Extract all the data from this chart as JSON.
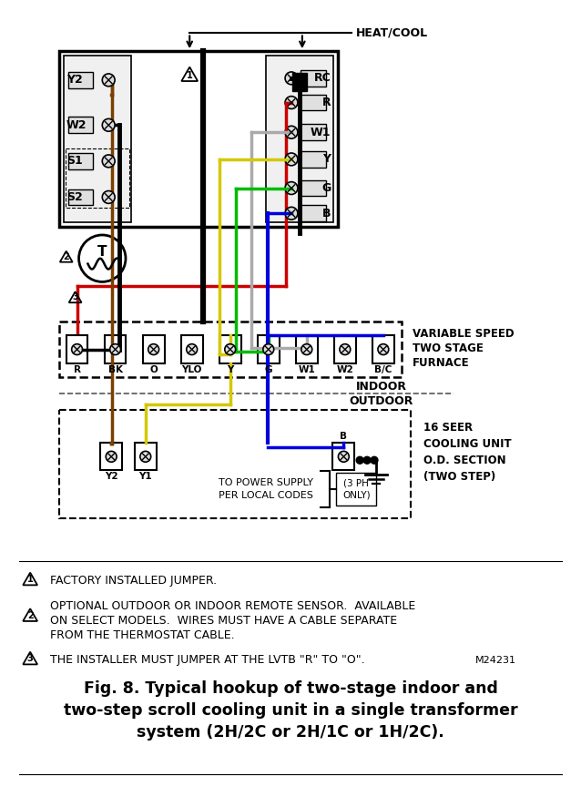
{
  "title_line1": "Fig. 8. Typical hookup of two-stage indoor and",
  "title_line2": "two-step scroll cooling unit in a single transformer",
  "title_line3": "system (2H/2C or 2H/1C or 1H/2C).",
  "heat_cool_label": "HEAT/COOL",
  "thermostat_labels_left": [
    "Y2",
    "W2",
    "S1",
    "S2"
  ],
  "thermostat_labels_right": [
    "RC",
    "R",
    "W1",
    "Y",
    "G",
    "B"
  ],
  "furnace_labels": [
    "R",
    "BK",
    "O",
    "YLO",
    "Y",
    "G",
    "W1",
    "W2",
    "B/C"
  ],
  "furnace_title_lines": [
    "VARIABLE SPEED",
    "TWO STAGE",
    "FURNACE"
  ],
  "cooling_unit_label_lines": [
    "16 SEER",
    "COOLING UNIT",
    "O.D. SECTION",
    "(TWO STEP)"
  ],
  "power_label": "TO POWER SUPPLY\nPER LOCAL CODES",
  "ph_label": "(3 PH\nONLY)",
  "note1": "FACTORY INSTALLED JUMPER.",
  "note2_line1": "OPTIONAL OUTDOOR OR INDOOR REMOTE SENSOR.  AVAILABLE",
  "note2_line2": "ON SELECT MODELS.  WIRES MUST HAVE A CABLE SEPARATE",
  "note2_line3": "FROM THE THERMOSTAT CABLE.",
  "note3": "THE INSTALLER MUST JUMPER AT THE LVTB \"R\" TO \"O\".",
  "model_num": "M24231",
  "bg_color": "#ffffff",
  "black": "#000000",
  "red": "#cc0000",
  "yellow": "#d4c800",
  "brown": "#7B3F00",
  "green": "#00bb00",
  "gray": "#aaaaaa",
  "blue": "#0000dd",
  "lw": 2.5
}
